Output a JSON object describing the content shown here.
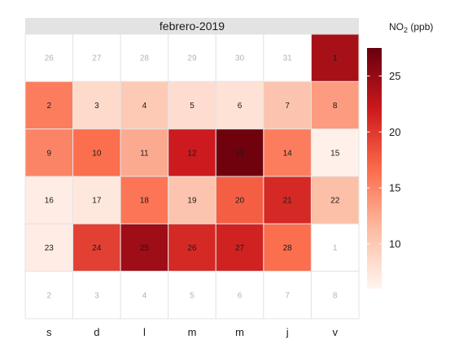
{
  "chart_data": {
    "type": "heatmap",
    "title": "febrero-2019",
    "legend": {
      "title_main": "NO",
      "title_sub": "2",
      "title_unit": " (ppb)",
      "range": [
        6,
        27.5
      ],
      "ticks": [
        10,
        15,
        20,
        25
      ],
      "ticks_text": [
        "10",
        "15",
        "20",
        "25"
      ],
      "colors": [
        "#fff5f0",
        "#fcbba1",
        "#fb6a4a",
        "#cb181d",
        "#67000d"
      ],
      "placement": "right"
    },
    "columns": [
      "s",
      "d",
      "l",
      "m",
      "m",
      "j",
      "v"
    ],
    "cells": [
      [
        {
          "day": "26",
          "value": null,
          "in_month": false
        },
        {
          "day": "27",
          "value": null,
          "in_month": false
        },
        {
          "day": "28",
          "value": null,
          "in_month": false
        },
        {
          "day": "29",
          "value": null,
          "in_month": false
        },
        {
          "day": "30",
          "value": null,
          "in_month": false
        },
        {
          "day": "31",
          "value": null,
          "in_month": false
        },
        {
          "day": "1",
          "value": 24,
          "in_month": true
        }
      ],
      [
        {
          "day": "2",
          "value": 15.5,
          "in_month": true
        },
        {
          "day": "3",
          "value": 8.5,
          "in_month": true
        },
        {
          "day": "4",
          "value": 10,
          "in_month": true
        },
        {
          "day": "5",
          "value": 8.2,
          "in_month": true
        },
        {
          "day": "6",
          "value": 7.8,
          "in_month": true
        },
        {
          "day": "7",
          "value": 10.5,
          "in_month": true
        },
        {
          "day": "8",
          "value": 13.5,
          "in_month": true
        }
      ],
      [
        {
          "day": "9",
          "value": 15,
          "in_month": true
        },
        {
          "day": "10",
          "value": 16.5,
          "in_month": true
        },
        {
          "day": "11",
          "value": 12.5,
          "in_month": true
        },
        {
          "day": "12",
          "value": 22,
          "in_month": true
        },
        {
          "day": "13",
          "value": 27,
          "in_month": true
        },
        {
          "day": "14",
          "value": 15.5,
          "in_month": true
        },
        {
          "day": "15",
          "value": 6.5,
          "in_month": true
        }
      ],
      [
        {
          "day": "16",
          "value": 6.8,
          "in_month": true
        },
        {
          "day": "17",
          "value": 7.2,
          "in_month": true
        },
        {
          "day": "18",
          "value": 16,
          "in_month": true
        },
        {
          "day": "19",
          "value": 10.5,
          "in_month": true
        },
        {
          "day": "20",
          "value": 17.5,
          "in_month": true
        },
        {
          "day": "21",
          "value": 21,
          "in_month": true
        },
        {
          "day": "22",
          "value": 11,
          "in_month": true
        }
      ],
      [
        {
          "day": "23",
          "value": 6.8,
          "in_month": true
        },
        {
          "day": "24",
          "value": 19.5,
          "in_month": true
        },
        {
          "day": "25",
          "value": 24.5,
          "in_month": true
        },
        {
          "day": "26",
          "value": 21,
          "in_month": true
        },
        {
          "day": "27",
          "value": 21.5,
          "in_month": true
        },
        {
          "day": "28",
          "value": 16.5,
          "in_month": true
        },
        {
          "day": "1",
          "value": null,
          "in_month": false
        }
      ],
      [
        {
          "day": "2",
          "value": null,
          "in_month": false
        },
        {
          "day": "3",
          "value": null,
          "in_month": false
        },
        {
          "day": "4",
          "value": null,
          "in_month": false
        },
        {
          "day": "5",
          "value": null,
          "in_month": false
        },
        {
          "day": "6",
          "value": null,
          "in_month": false
        },
        {
          "day": "7",
          "value": null,
          "in_month": false
        },
        {
          "day": "8",
          "value": null,
          "in_month": false
        }
      ]
    ],
    "style": {
      "grid_line_color": "#e3e3e3",
      "empty_fill": "#ffffff",
      "strip_fill": "#e3e3e3",
      "in_month_text": "#1a1a1a",
      "out_month_text": "#b3b3b3"
    }
  }
}
